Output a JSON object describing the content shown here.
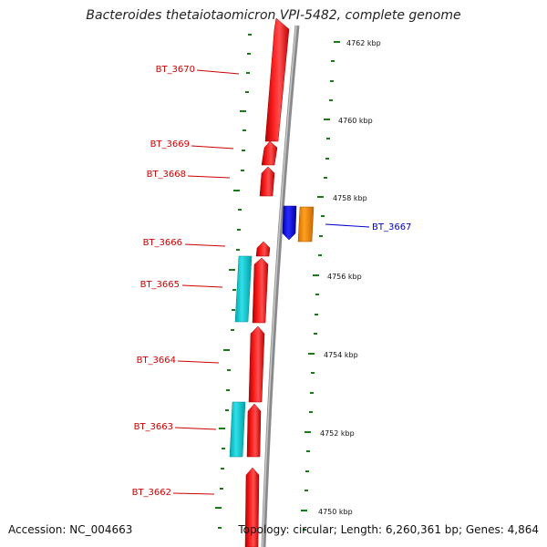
{
  "title": "Bacteroides thetaiotaomicron VPI-5482, complete genome",
  "accession": "Accession: NC_004663",
  "topology": "Topology: circular; Length: 6,260,361 bp; Genes: 4,864",
  "colors": {
    "forward_gene": "#ff0000",
    "reverse_gene": "#00c8d0",
    "highlight_gene": "#1010ff",
    "highlight_gene_2": "#ff9900",
    "backbone": "#909090",
    "tick": "#1a7a1a",
    "label_red": "#cc0000",
    "label_blue": "#0000cc"
  },
  "kbp_labels": [
    "4762 kbp",
    "4760 kbp",
    "4758 kbp",
    "4756 kbp",
    "4754 kbp",
    "4752 kbp",
    "4750 kbp"
  ],
  "gene_labels": [
    "BT_3670",
    "BT_3669",
    "BT_3668",
    "BT_3667",
    "BT_3666",
    "BT_3665",
    "BT_3664",
    "BT_3663",
    "BT_3662"
  ]
}
